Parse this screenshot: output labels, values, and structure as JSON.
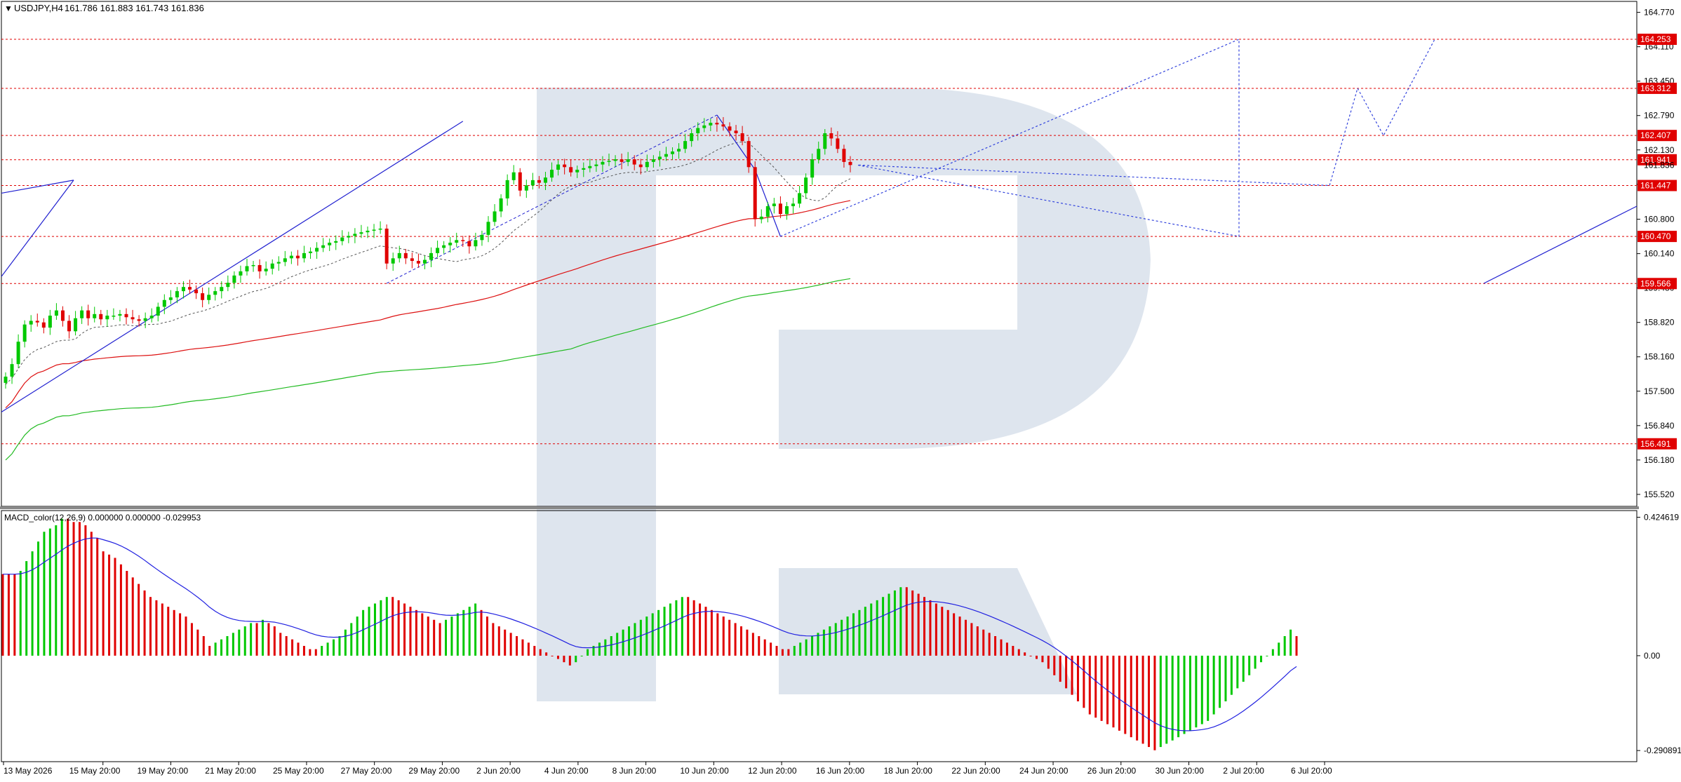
{
  "chart_data": {
    "type": "line",
    "symbol": "USDJPY",
    "timeframe": "H4",
    "header": {
      "symbol_label": "USDJPY,H4",
      "ohlc": "161.786 161.883 161.743 161.836"
    },
    "current_price_label": "161.836",
    "price_axis": {
      "range": [
        155.29,
        164.98
      ],
      "ticks": [
        "164.770",
        "164.110",
        "163.450",
        "162.790",
        "162.130",
        "161.470",
        "160.800",
        "160.140",
        "159.480",
        "158.820",
        "158.160",
        "157.500",
        "156.840",
        "156.180",
        "155.520"
      ]
    },
    "levels": [
      {
        "label": "164.253",
        "value": 164.253,
        "color": "#e00000"
      },
      {
        "label": "163.312",
        "value": 163.312,
        "color": "#e00000"
      },
      {
        "label": "162.407",
        "value": 162.407,
        "color": "#e00000"
      },
      {
        "label": "161.941",
        "value": 161.941,
        "color": "#e00000"
      },
      {
        "label": "161.447",
        "value": 161.447,
        "color": "#e00000"
      },
      {
        "label": "160.470",
        "value": 160.47,
        "color": "#e00000"
      },
      {
        "label": "159.566",
        "value": 159.566,
        "color": "#e00000"
      },
      {
        "label": "156.491",
        "value": 156.491,
        "color": "#e00000"
      }
    ],
    "x_axis": {
      "ticks": [
        "13 May 2026",
        "15 May 20:00",
        "19 May 20:00",
        "21 May 20:00",
        "25 May 20:00",
        "27 May 20:00",
        "29 May 20:00",
        "2 Jun 20:00",
        "4 Jun 20:00",
        "8 Jun 20:00",
        "10 Jun 20:00",
        "12 Jun 20:00",
        "16 Jun 20:00",
        "18 Jun 20:00",
        "22 Jun 20:00",
        "24 Jun 20:00",
        "26 Jun 20:00",
        "30 Jun 20:00",
        "2 Jul 20:00",
        "6 Jul 20:00"
      ]
    },
    "series": [
      {
        "name": "close",
        "values": [
          157.78,
          158.02,
          158.45,
          158.78,
          158.85,
          158.82,
          158.72,
          158.95,
          159.05,
          158.85,
          158.65,
          158.9,
          159.05,
          158.9,
          158.98,
          158.88,
          158.95,
          158.95,
          158.98,
          158.92,
          158.88,
          158.85,
          158.9,
          158.95,
          159.12,
          159.25,
          159.3,
          159.42,
          159.5,
          159.45,
          159.38,
          159.25,
          159.35,
          159.42,
          159.5,
          159.58,
          159.72,
          159.8,
          159.9,
          159.92,
          159.8,
          159.85,
          159.95,
          159.98,
          160.05,
          160.1,
          160.05,
          160.15,
          160.18,
          160.25,
          160.3,
          160.35,
          160.38,
          160.45,
          160.48,
          160.52,
          160.55,
          160.58,
          160.6,
          160.62,
          159.95,
          160.05,
          160.15,
          160.05,
          160.0,
          159.95,
          160.02,
          160.15,
          160.25,
          160.3,
          160.35,
          160.4,
          160.38,
          160.28,
          160.4,
          160.5,
          160.75,
          160.95,
          161.2,
          161.55,
          161.7,
          161.35,
          161.45,
          161.55,
          161.5,
          161.6,
          161.75,
          161.85,
          161.8,
          161.7,
          161.75,
          161.78,
          161.82,
          161.85,
          161.9,
          161.92,
          161.95,
          161.9,
          161.95,
          161.85,
          161.8,
          161.9,
          161.95,
          162.0,
          162.05,
          162.1,
          162.15,
          162.3,
          162.45,
          162.55,
          162.6,
          162.65,
          162.62,
          162.58,
          162.5,
          162.45,
          162.3,
          161.8,
          160.8,
          160.85,
          161.05,
          161.1,
          160.9,
          161.05,
          161.1,
          161.3,
          161.6,
          161.95,
          162.15,
          162.45,
          162.35,
          162.15,
          161.9,
          161.84
        ]
      },
      {
        "name": "MA red",
        "values": []
      },
      {
        "name": "MA green",
        "values": []
      }
    ],
    "macd": {
      "label": "MACD_color(12,26,9) 0.000000 0.000000 -0.029953",
      "ticks": [
        "0.424619",
        "0.00",
        "-0.290891"
      ],
      "range": [
        -0.325,
        0.445
      ],
      "histogram": [
        0.25,
        0.25,
        0.25,
        0.26,
        0.29,
        0.32,
        0.35,
        0.38,
        0.39,
        0.4,
        0.42,
        0.42,
        0.41,
        0.41,
        0.4,
        0.38,
        0.36,
        0.32,
        0.31,
        0.3,
        0.28,
        0.26,
        0.24,
        0.22,
        0.2,
        0.18,
        0.17,
        0.16,
        0.15,
        0.14,
        0.13,
        0.12,
        0.1,
        0.08,
        0.06,
        0.03,
        0.04,
        0.05,
        0.06,
        0.07,
        0.08,
        0.09,
        0.1,
        0.1,
        0.11,
        0.1,
        0.09,
        0.07,
        0.06,
        0.05,
        0.04,
        0.03,
        0.02,
        0.02,
        0.03,
        0.04,
        0.05,
        0.06,
        0.08,
        0.1,
        0.12,
        0.14,
        0.15,
        0.16,
        0.17,
        0.18,
        0.18,
        0.17,
        0.16,
        0.15,
        0.14,
        0.13,
        0.12,
        0.11,
        0.1,
        0.11,
        0.12,
        0.13,
        0.14,
        0.15,
        0.16,
        0.14,
        0.12,
        0.1,
        0.09,
        0.08,
        0.07,
        0.06,
        0.05,
        0.04,
        0.03,
        0.02,
        0.01,
        0.0,
        -0.01,
        -0.02,
        -0.03,
        -0.02,
        0.0,
        0.02,
        0.03,
        0.04,
        0.05,
        0.06,
        0.07,
        0.08,
        0.09,
        0.1,
        0.11,
        0.12,
        0.13,
        0.14,
        0.15,
        0.16,
        0.17,
        0.18,
        0.18,
        0.17,
        0.16,
        0.15,
        0.14,
        0.13,
        0.12,
        0.11,
        0.1,
        0.09,
        0.08,
        0.07,
        0.06,
        0.05,
        0.04,
        0.03,
        0.02,
        0.02,
        0.03,
        0.04,
        0.05,
        0.06,
        0.07,
        0.08,
        0.09,
        0.1,
        0.11,
        0.12,
        0.13,
        0.14,
        0.15,
        0.16,
        0.17,
        0.18,
        0.19,
        0.2,
        0.21,
        0.21,
        0.2,
        0.19,
        0.18,
        0.17,
        0.16,
        0.15,
        0.14,
        0.13,
        0.12,
        0.11,
        0.1,
        0.09,
        0.08,
        0.07,
        0.06,
        0.05,
        0.04,
        0.03,
        0.02,
        0.01,
        0.0,
        -0.01,
        -0.02,
        -0.04,
        -0.06,
        -0.08,
        -0.1,
        -0.12,
        -0.14,
        -0.16,
        -0.18,
        -0.19,
        -0.2,
        -0.21,
        -0.22,
        -0.23,
        -0.24,
        -0.25,
        -0.26,
        -0.27,
        -0.28,
        -0.29,
        -0.28,
        -0.27,
        -0.26,
        -0.25,
        -0.24,
        -0.23,
        -0.22,
        -0.21,
        -0.2,
        -0.18,
        -0.16,
        -0.14,
        -0.12,
        -0.1,
        -0.08,
        -0.06,
        -0.04,
        -0.02,
        0.0,
        0.02,
        0.04,
        0.06,
        0.08,
        0.06
      ]
    },
    "colors": {
      "bull_candle": "#00c800",
      "bear_candle": "#e00000",
      "trend_line": "#2020d0",
      "ma_red": "#dd1111",
      "ma_green": "#22bb22",
      "level_line": "#e00000",
      "macd_signal": "#2020e0"
    }
  }
}
